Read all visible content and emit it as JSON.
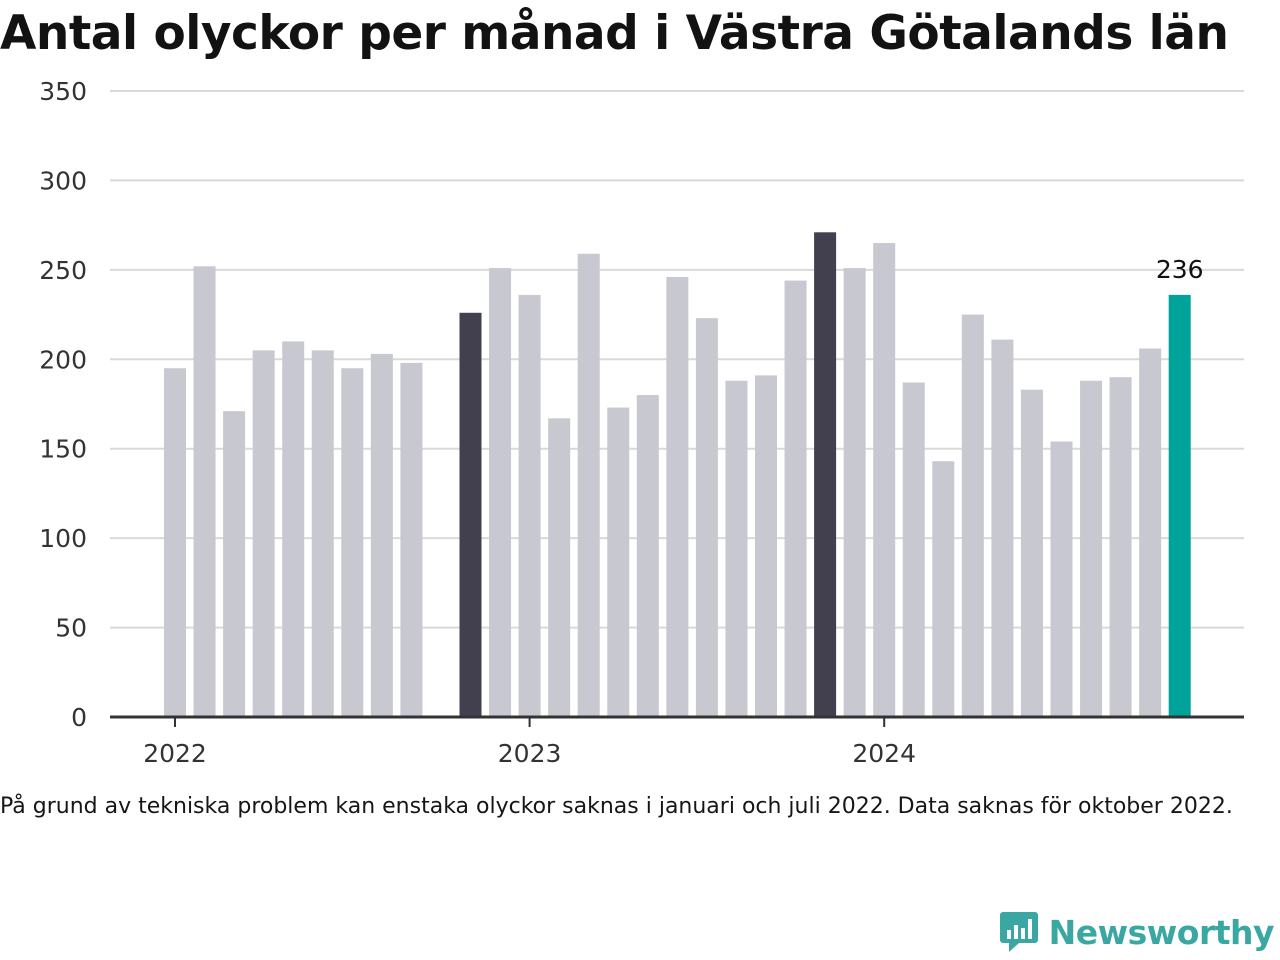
{
  "title": "Antal olyckor per månad i Västra Götalands län",
  "note": "På grund av tekniska problem kan enstaka olyckor saknas i januari och juli 2022. Data saknas för oktober 2022.",
  "brand": {
    "name": "Newsworthy",
    "icon": "newsworthy-chart-bubble-icon",
    "color": "#3aa7a2"
  },
  "colors": {
    "default": "#c8c8d0",
    "highlight": "#42404e",
    "latest": "#00a39a",
    "grid": "#d9d9d9",
    "axis": "#333333"
  },
  "chart_data": {
    "type": "bar",
    "title": "Antal olyckor per månad i Västra Götalands län",
    "xlabel": "",
    "ylabel": "",
    "ylim": [
      0,
      350
    ],
    "yticks": [
      0,
      50,
      100,
      150,
      200,
      250,
      300,
      350
    ],
    "xticks": [
      {
        "label": "2022",
        "x": "2022-01"
      },
      {
        "label": "2023",
        "x": "2023-01"
      },
      {
        "label": "2024",
        "x": "2024-01"
      }
    ],
    "grid": true,
    "legend": "none",
    "x": [
      "2022-01",
      "2022-02",
      "2022-03",
      "2022-04",
      "2022-05",
      "2022-06",
      "2022-07",
      "2022-08",
      "2022-09",
      "2022-10",
      "2022-11",
      "2022-12",
      "2023-01",
      "2023-02",
      "2023-03",
      "2023-04",
      "2023-05",
      "2023-06",
      "2023-07",
      "2023-08",
      "2023-09",
      "2023-10",
      "2023-11",
      "2023-12",
      "2024-01",
      "2024-02",
      "2024-03",
      "2024-04",
      "2024-05",
      "2024-06",
      "2024-07",
      "2024-08",
      "2024-09",
      "2024-10",
      "2024-11",
      "2024-12"
    ],
    "values": [
      195,
      252,
      171,
      205,
      210,
      205,
      195,
      203,
      198,
      null,
      226,
      251,
      236,
      167,
      259,
      173,
      180,
      246,
      223,
      188,
      191,
      244,
      271,
      251,
      265,
      187,
      143,
      225,
      211,
      183,
      154,
      188,
      190,
      206,
      236,
      null
    ],
    "highlight": [
      "2022-11",
      "2023-11"
    ],
    "latest": "2024-11",
    "labels": [
      {
        "x": "2024-11",
        "text": "236"
      }
    ]
  }
}
